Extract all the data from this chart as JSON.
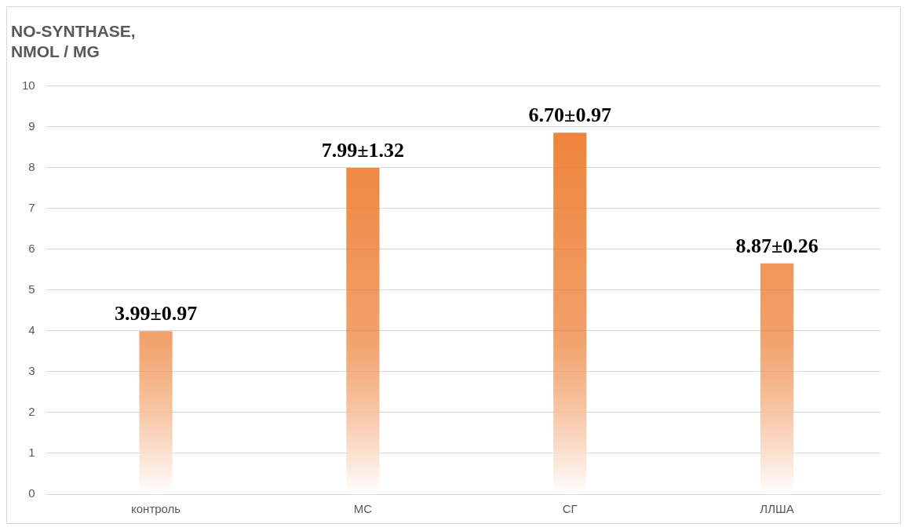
{
  "chart_data": {
    "type": "bar",
    "title": "NO-SYNTHASE,\nNMOL / MG",
    "categories": [
      "контроль",
      "МС",
      "СГ",
      "ЛЛША"
    ],
    "values": [
      3.99,
      7.99,
      8.85,
      5.65
    ],
    "annotations": [
      {
        "text": "3.99±0.97",
        "x": "контроль",
        "y": 3.99
      },
      {
        "text": "7.99±1.32",
        "x": "МС",
        "y": 7.99
      },
      {
        "text": "6.70±0.97",
        "x": "СГ",
        "y": 8.85
      },
      {
        "text": "8.87±0.26",
        "x": "ЛЛША",
        "y": 5.65
      }
    ],
    "color": "#ed7d31",
    "ylim": [
      0,
      10
    ],
    "yticks": [
      0,
      1,
      2,
      3,
      4,
      5,
      6,
      7,
      8,
      9,
      10
    ],
    "grid": "y",
    "legend": false
  }
}
